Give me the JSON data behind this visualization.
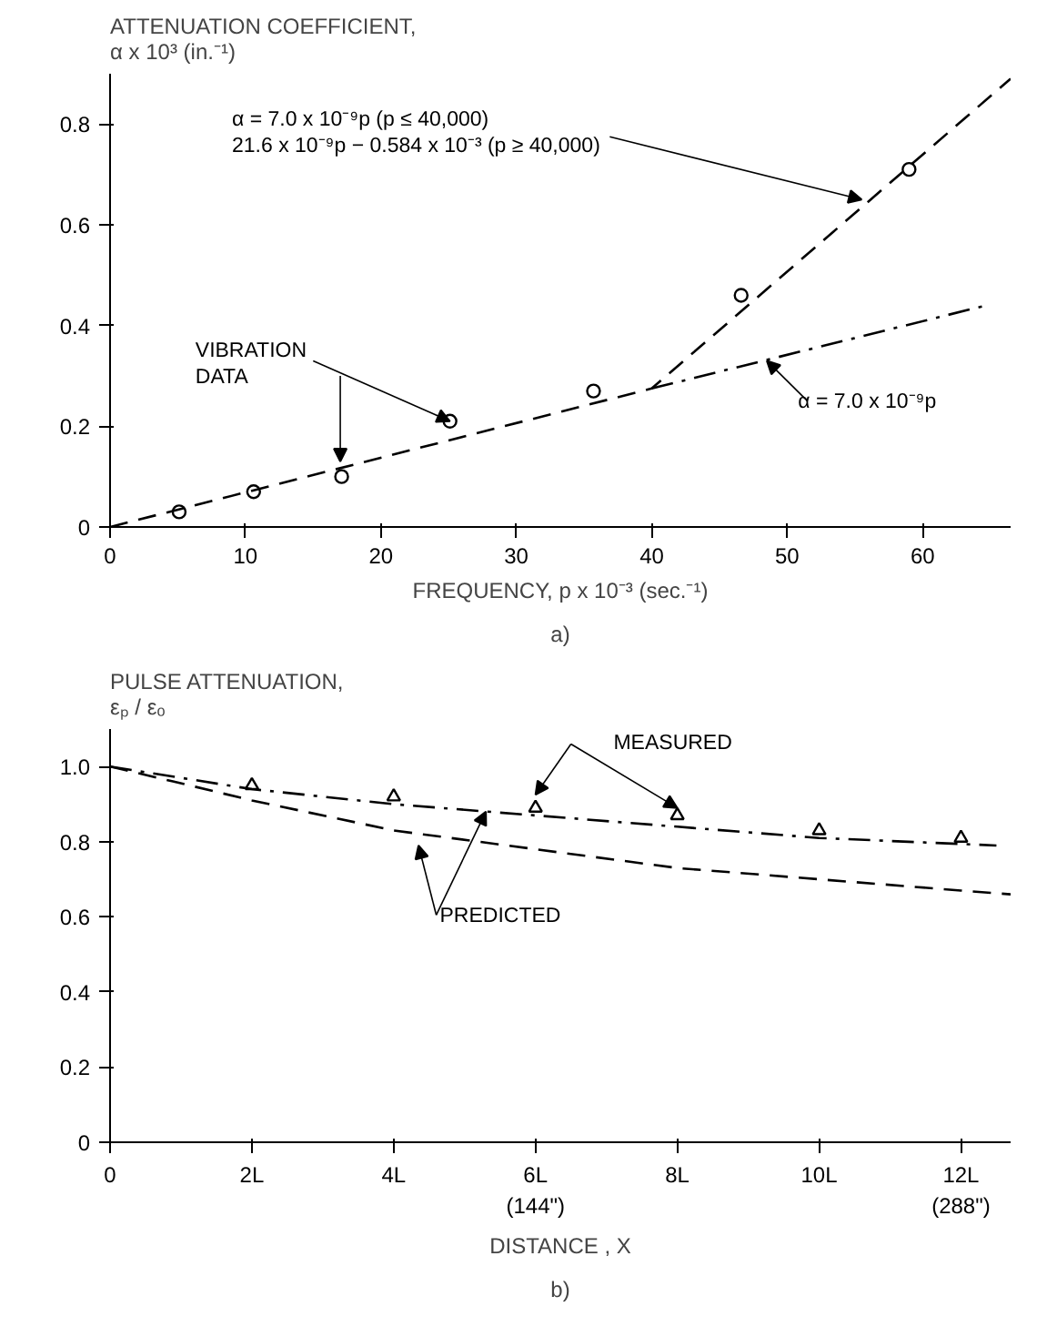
{
  "chart_data": [
    {
      "type": "scatter",
      "ylabel": "ATTENUATION COEFFICIENT,\nα x 10³ (in.⁻¹)",
      "xlabel": "FREQUENCY, p x 10⁻³ (sec.⁻¹)",
      "xlim": [
        0,
        66.5
      ],
      "ylim": [
        0,
        0.9
      ],
      "xticks": [
        0,
        10,
        20,
        30,
        40,
        50,
        60
      ],
      "yticks": [
        0,
        0.2,
        0.4,
        0.6,
        0.8
      ],
      "grid": false,
      "series": [
        {
          "color": "#000000",
          "marker": "circle",
          "x": [
            5.1,
            10.6,
            17.1,
            25.1,
            35.7,
            46.6,
            59
          ],
          "values": [
            0.03,
            0.07,
            0.1,
            0.21,
            0.27,
            0.46,
            0.71
          ]
        },
        {
          "type": "line",
          "color": "#000000",
          "marker": "none",
          "line_style": "dashed",
          "x": [
            0,
            40,
            66.5
          ],
          "values": [
            0,
            0.275,
            0.89
          ]
        },
        {
          "type": "line",
          "color": "#000000",
          "marker": "none",
          "line_style": "dashdot",
          "x": [
            40,
            64.7
          ],
          "values": [
            0.275,
            0.44
          ]
        }
      ],
      "annotations": [
        {
          "text": "VIBRATION\nDATA",
          "x": 25.1,
          "y": 0.21
        },
        {
          "text": "α = 7.0 x 10⁻⁹p   (p ≤ 40,000)\n21.6 x 10⁻⁹p − 0.584 x 10⁻³   (p ≥ 40,000)",
          "x": 55.5,
          "y": 0.65
        },
        {
          "text": "α = 7.0 x 10⁻⁹p",
          "x": 48.5,
          "y": 0.33
        },
        "a)"
      ]
    },
    {
      "type": "scatter",
      "ylabel": "PULSE ATTENUATION,\nεₚ / εₒ",
      "xlabel": "DISTANCE , X",
      "xlim": [
        0,
        12.7
      ],
      "ylim": [
        0,
        1.1
      ],
      "xticks": [
        0,
        {
          "value": 2,
          "label": "2L"
        },
        {
          "value": 4,
          "label": "4L"
        },
        {
          "value": 6,
          "label": "6L\n(144\")"
        },
        {
          "value": 8,
          "label": "8L"
        },
        {
          "value": 10,
          "label": "10L"
        },
        {
          "value": 12,
          "label": "12L\n(288\")"
        }
      ],
      "yticks": [
        0,
        0.2,
        0.4,
        0.6,
        0.8,
        {
          "value": 1.0,
          "label": "1.0"
        }
      ],
      "grid": false,
      "series": [
        {
          "color": "#000000",
          "marker": "triangle",
          "x": [
            2,
            4,
            6,
            8,
            10,
            12
          ],
          "values": [
            0.95,
            0.92,
            0.89,
            0.87,
            0.83,
            0.81
          ]
        },
        {
          "type": "line",
          "color": "#000000",
          "marker": "none",
          "line_style": "dashdot",
          "x": [
            0,
            2,
            4,
            6,
            8,
            10,
            12.5
          ],
          "values": [
            1.0,
            0.94,
            0.9,
            0.87,
            0.84,
            0.81,
            0.79
          ]
        },
        {
          "type": "line",
          "color": "#000000",
          "marker": "none",
          "line_style": "dashed",
          "x": [
            0,
            0.9,
            2,
            4,
            6,
            8,
            10,
            12,
            12.7
          ],
          "values": [
            1.0,
            0.96,
            0.91,
            0.83,
            0.78,
            0.73,
            0.7,
            0.67,
            0.66
          ]
        }
      ],
      "annotations": [
        {
          "text": "MEASURED",
          "x": 8,
          "y": 0.89
        },
        {
          "text": "PREDICTED",
          "x": 5.3,
          "y": 0.88
        },
        "b)"
      ]
    }
  ]
}
